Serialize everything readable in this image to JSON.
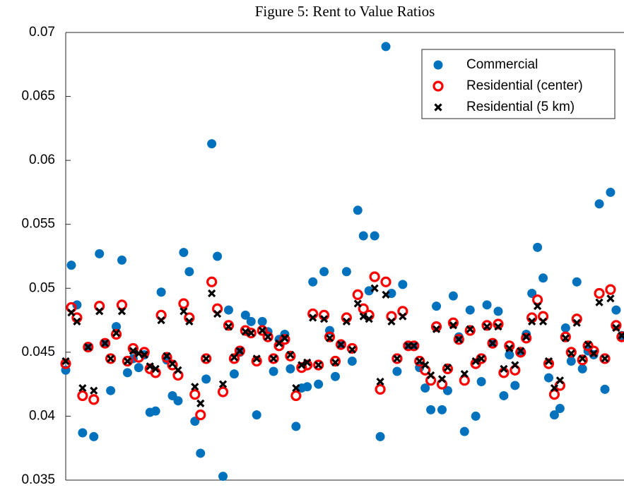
{
  "chart_data": {
    "type": "scatter",
    "title": "Figure 5: Rent to Value Ratios",
    "x": [
      1,
      2,
      3,
      4,
      5,
      6,
      7,
      8,
      9,
      10,
      11,
      12,
      13,
      14,
      15,
      16,
      17,
      18,
      19,
      20,
      21,
      22,
      23,
      24,
      25,
      26,
      27,
      28,
      29,
      30,
      31,
      32,
      33,
      34,
      35,
      36,
      37,
      38,
      39,
      40,
      41,
      42,
      43,
      44,
      45,
      46,
      47,
      48,
      49,
      50,
      51,
      52,
      53,
      54,
      55,
      56,
      57,
      58,
      59,
      60,
      61,
      62,
      63,
      64,
      65,
      66,
      67,
      68,
      69,
      70,
      71,
      72,
      73,
      74,
      75,
      76,
      77,
      78,
      79,
      80,
      81,
      82,
      83,
      84,
      85,
      86,
      87,
      88,
      89,
      90,
      91,
      92,
      93,
      94,
      95,
      96,
      97,
      98,
      99,
      100
    ],
    "xlim": [
      1,
      100.4
    ],
    "ylim": [
      0.035,
      0.07
    ],
    "yticks": [
      0.035,
      0.04,
      0.045,
      0.05,
      0.055,
      0.06,
      0.065,
      0.07
    ],
    "legend": "upper right",
    "series": [
      {
        "name": "Commercial",
        "color": "#0072bd",
        "marker": "filled-circle",
        "values": [
          0.0436,
          0.0518,
          0.0487,
          0.0387,
          0.0454,
          0.0384,
          0.0527,
          0.0457,
          0.042,
          0.047,
          0.0522,
          0.0434,
          0.0445,
          0.0438,
          0.0448,
          0.0403,
          0.0404,
          0.0497,
          0.0444,
          0.0416,
          0.0412,
          0.0528,
          0.0513,
          0.0396,
          0.0371,
          0.0429,
          0.0613,
          0.0525,
          0.0353,
          0.0483,
          0.0433,
          0.045,
          0.0479,
          0.0474,
          0.0401,
          0.0474,
          0.0466,
          0.0435,
          0.046,
          0.0464,
          0.0437,
          0.0392,
          0.0422,
          0.0423,
          0.0505,
          0.0425,
          0.0513,
          0.0467,
          0.0431,
          0.0456,
          0.0513,
          0.0443,
          0.0561,
          0.0541,
          0.0498,
          0.0541,
          0.0384,
          0.0689,
          0.0496,
          0.0435,
          0.0503,
          0.0455,
          0.0455,
          0.0438,
          0.0422,
          0.0405,
          0.0486,
          0.0405,
          0.042,
          0.0494,
          0.0462,
          0.0388,
          0.0483,
          0.04,
          0.0427,
          0.0487,
          0.0457,
          0.0482,
          0.0416,
          0.0448,
          0.0424,
          0.045,
          0.0464,
          0.0496,
          0.0532,
          0.0508,
          0.043,
          0.0401,
          0.0406,
          0.0469,
          0.0443,
          0.0505,
          0.0437,
          0.0451,
          0.0448,
          0.0566,
          0.0421,
          0.0575,
          0.0483,
          0.0463
        ]
      },
      {
        "name": "Residential (center)",
        "color": "#ff0000",
        "marker": "open-circle",
        "values": [
          0.0441,
          0.0485,
          0.0477,
          0.0416,
          0.0454,
          0.0413,
          0.0486,
          0.0457,
          0.0445,
          0.0464,
          0.0487,
          0.0443,
          0.0453,
          0.0446,
          0.045,
          0.0437,
          0.0434,
          0.0479,
          0.0446,
          0.044,
          0.0432,
          0.0488,
          0.0477,
          0.0417,
          0.0401,
          0.0445,
          0.0505,
          0.0484,
          0.0419,
          0.0471,
          0.0445,
          0.0451,
          0.0467,
          0.0465,
          0.0443,
          0.0467,
          0.0462,
          0.0445,
          0.0455,
          0.046,
          0.0447,
          0.0416,
          0.0438,
          0.044,
          0.048,
          0.044,
          0.0479,
          0.0462,
          0.0443,
          0.0456,
          0.0477,
          0.0453,
          0.0495,
          0.0484,
          0.0479,
          0.0509,
          0.0421,
          0.0505,
          0.0478,
          0.0445,
          0.0482,
          0.0455,
          0.0455,
          0.0443,
          0.0436,
          0.0428,
          0.047,
          0.0425,
          0.0437,
          0.0473,
          0.046,
          0.0428,
          0.0467,
          0.0441,
          0.0445,
          0.0471,
          0.0457,
          0.0472,
          0.0434,
          0.0455,
          0.0436,
          0.045,
          0.0461,
          0.0477,
          0.0491,
          0.0478,
          0.0441,
          0.0417,
          0.0424,
          0.0462,
          0.045,
          0.0476,
          0.0444,
          0.0455,
          0.0451,
          0.0496,
          0.0445,
          0.0499,
          0.0471,
          0.0462
        ]
      },
      {
        "name": "Residential (5 km)",
        "color": "#000000",
        "marker": "x",
        "values": [
          0.0443,
          0.0481,
          0.0474,
          0.0422,
          0.0454,
          0.042,
          0.0482,
          0.0457,
          0.0445,
          0.0465,
          0.0482,
          0.0443,
          0.0451,
          0.0449,
          0.0448,
          0.0439,
          0.0437,
          0.0475,
          0.0447,
          0.0441,
          0.0436,
          0.0482,
          0.0474,
          0.0423,
          0.041,
          0.0445,
          0.0496,
          0.048,
          0.0425,
          0.047,
          0.0446,
          0.0451,
          0.0466,
          0.0465,
          0.0445,
          0.0467,
          0.0462,
          0.0445,
          0.0457,
          0.0461,
          0.0448,
          0.0422,
          0.044,
          0.0442,
          0.0477,
          0.044,
          0.0476,
          0.0461,
          0.0442,
          0.0456,
          0.0474,
          0.0452,
          0.0488,
          0.0478,
          0.0476,
          0.05,
          0.0427,
          0.0495,
          0.0474,
          0.0445,
          0.0478,
          0.0455,
          0.0455,
          0.0443,
          0.044,
          0.0432,
          0.0468,
          0.0429,
          0.0438,
          0.0471,
          0.046,
          0.0433,
          0.0468,
          0.0443,
          0.0445,
          0.047,
          0.0457,
          0.047,
          0.0437,
          0.0453,
          0.044,
          0.0451,
          0.0462,
          0.0474,
          0.0486,
          0.0474,
          0.0443,
          0.0422,
          0.0428,
          0.0461,
          0.0449,
          0.0473,
          0.0445,
          0.0456,
          0.0449,
          0.0489,
          0.0445,
          0.0492,
          0.0469,
          0.0463
        ]
      }
    ]
  }
}
